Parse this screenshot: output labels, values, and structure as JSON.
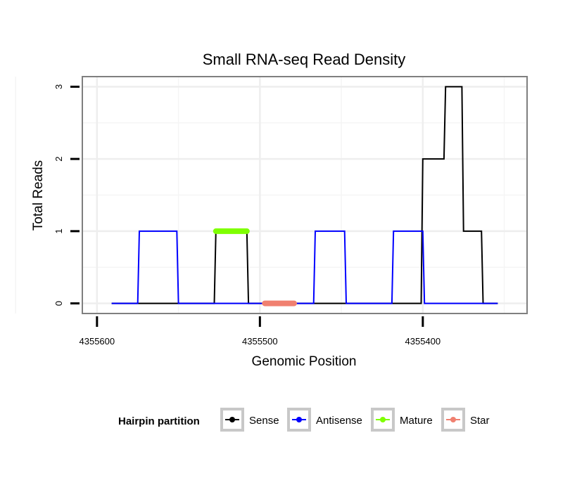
{
  "chart_data": {
    "type": "line",
    "title": "Small RNA-seq Read Density",
    "xlabel": "Genomic Position",
    "ylabel": "Total Reads",
    "x_reversed": true,
    "xlim": [
      4355609,
      4355336
    ],
    "ylim": [
      -0.14,
      3.14
    ],
    "x_ticks": [
      4355600,
      4355500,
      4355400
    ],
    "x_tick_labels": [
      "4355600",
      "4355500",
      "4355400"
    ],
    "y_ticks": [
      0,
      1,
      2,
      3
    ],
    "y_tick_labels": [
      "0",
      "1",
      "2",
      "3"
    ],
    "grid": true,
    "legend": {
      "title": "Hairpin partition",
      "position": "bottom",
      "entries": [
        "Sense",
        "Antisense",
        "Mature",
        "Star"
      ]
    },
    "series": [
      {
        "name": "Sense",
        "color": "#000000",
        "x": [
          4355591,
          4355528,
          4355527,
          4355508,
          4355507,
          4355401,
          4355400,
          4355387,
          4355386,
          4355376,
          4355375,
          4355364,
          4355363,
          4355354
        ],
        "y": [
          0,
          0,
          1,
          1,
          0,
          0,
          2,
          2,
          3,
          3,
          1,
          1,
          0,
          0
        ]
      },
      {
        "name": "Antisense",
        "color": "#0000ff",
        "x": [
          4355591,
          4355575,
          4355574,
          4355551,
          4355550,
          4355467,
          4355466,
          4355448,
          4355447,
          4355419,
          4355418,
          4355400,
          4355399,
          4355354
        ],
        "y": [
          0,
          0,
          1,
          1,
          0,
          0,
          1,
          1,
          0,
          0,
          1,
          1,
          0,
          0
        ]
      },
      {
        "name": "Mature",
        "color": "#7fff00",
        "x": [
          4355527,
          4355508
        ],
        "y": [
          1,
          1
        ]
      },
      {
        "name": "Star",
        "color": "#f08070",
        "x": [
          4355497,
          4355479
        ],
        "y": [
          0,
          0
        ]
      }
    ]
  }
}
